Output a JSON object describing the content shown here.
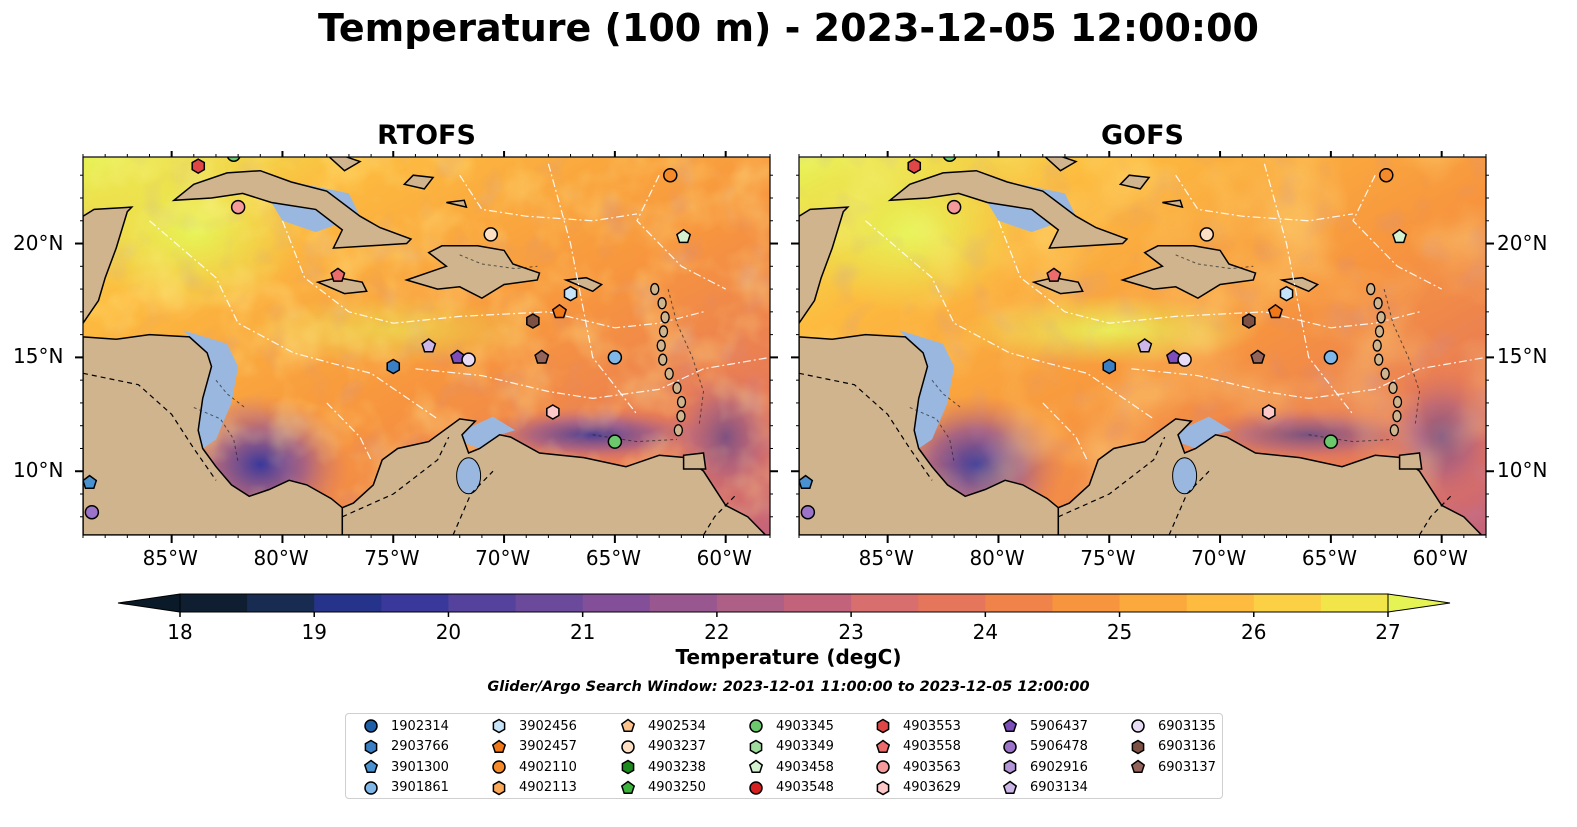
{
  "title": "Temperature (100 m) - 2023-12-05 12:00:00",
  "panels": [
    {
      "title": "RTOFS",
      "warm_level": 0.85
    },
    {
      "title": "GOFS",
      "warm_level": 0.92
    }
  ],
  "axes": {
    "lon_labels": [
      "85°W",
      "80°W",
      "75°W",
      "70°W",
      "65°W",
      "60°W"
    ],
    "lat_labels": [
      "20°N",
      "15°N",
      "10°N"
    ],
    "lon_values": [
      -85,
      -80,
      -75,
      -70,
      -65,
      -60
    ],
    "lat_values": [
      20,
      15,
      10
    ],
    "lon_range": [
      -89,
      -58
    ],
    "lat_range": [
      7.2,
      23.8
    ]
  },
  "colorbar": {
    "label": "Temperature (degC)",
    "ticks": [
      "18",
      "19",
      "20",
      "21",
      "22",
      "23",
      "24",
      "25",
      "26",
      "27"
    ],
    "min": 18,
    "max": 27,
    "colors": [
      "#0f1e30",
      "#172c50",
      "#25348a",
      "#3a389b",
      "#55429c",
      "#6b4a9c",
      "#824f98",
      "#98588f",
      "#ad5f85",
      "#c3637b",
      "#d86e6e",
      "#e5765b",
      "#f0834a",
      "#f7953e",
      "#fba83c",
      "#fdbb3f",
      "#fbd044",
      "#f2e54a"
    ],
    "extend": "both",
    "under_color": "#0b1a28",
    "over_color": "#e6f355"
  },
  "search_window": "Glider/Argo Search Window: 2023-12-01 11:00:00 to 2023-12-05 12:00:00",
  "legend": [
    {
      "id": "1902314",
      "marker": "circle",
      "color": "#1f5fa8"
    },
    {
      "id": "2903766",
      "marker": "hexagon",
      "color": "#3a7ec4"
    },
    {
      "id": "3901300",
      "marker": "pentagon",
      "color": "#4a91d0"
    },
    {
      "id": "3901861",
      "marker": "circle",
      "color": "#7fb8e8"
    },
    {
      "id": "3902456",
      "marker": "hexagon",
      "color": "#c7e3f7"
    },
    {
      "id": "3902457",
      "marker": "pentagon",
      "color": "#f07818"
    },
    {
      "id": "4902110",
      "marker": "circle",
      "color": "#f58a2a"
    },
    {
      "id": "4902113",
      "marker": "hexagon",
      "color": "#fba858"
    },
    {
      "id": "4902534",
      "marker": "pentagon",
      "color": "#fcc48c"
    },
    {
      "id": "4903237",
      "marker": "circle",
      "color": "#fde0c4"
    },
    {
      "id": "4903238",
      "marker": "hexagon",
      "color": "#1d8a1d"
    },
    {
      "id": "4903250",
      "marker": "pentagon",
      "color": "#3cb43c"
    },
    {
      "id": "4903345",
      "marker": "circle",
      "color": "#6cc86c"
    },
    {
      "id": "4903349",
      "marker": "hexagon",
      "color": "#9fdd9f"
    },
    {
      "id": "4903458",
      "marker": "pentagon",
      "color": "#d4f2d0"
    },
    {
      "id": "4903548",
      "marker": "circle",
      "color": "#d62020"
    },
    {
      "id": "4903553",
      "marker": "hexagon",
      "color": "#e04646"
    },
    {
      "id": "4903558",
      "marker": "pentagon",
      "color": "#ec6c6c"
    },
    {
      "id": "4903563",
      "marker": "circle",
      "color": "#f49a9a"
    },
    {
      "id": "4903629",
      "marker": "hexagon",
      "color": "#fcc8c8"
    },
    {
      "id": "5906437",
      "marker": "pentagon",
      "color": "#7c4dbb"
    },
    {
      "id": "5906478",
      "marker": "circle",
      "color": "#9b74c9"
    },
    {
      "id": "6902916",
      "marker": "hexagon",
      "color": "#b496d8"
    },
    {
      "id": "6903134",
      "marker": "pentagon",
      "color": "#cdb6e8"
    },
    {
      "id": "6903135",
      "marker": "circle",
      "color": "#e8dcf5"
    },
    {
      "id": "6903136",
      "marker": "hexagon",
      "color": "#7c5144"
    },
    {
      "id": "6903137",
      "marker": "pentagon",
      "color": "#94645a"
    }
  ],
  "floats": [
    {
      "id": "4903553",
      "lon": -83.8,
      "lat": 23.4
    },
    {
      "id": "4903345",
      "lon": -82.2,
      "lat": 23.9
    },
    {
      "id": "4903563",
      "lon": -82.0,
      "lat": 21.6
    },
    {
      "id": "4903237",
      "lon": -70.6,
      "lat": 20.4
    },
    {
      "id": "4902110",
      "lon": -62.5,
      "lat": 23.0
    },
    {
      "id": "4903458",
      "lon": -61.9,
      "lat": 20.3
    },
    {
      "id": "4903558",
      "lon": -77.5,
      "lat": 18.6
    },
    {
      "id": "3902456",
      "lon": -67.0,
      "lat": 17.8
    },
    {
      "id": "3902457",
      "lon": -67.5,
      "lat": 17.0
    },
    {
      "id": "6903136",
      "lon": -68.7,
      "lat": 16.6
    },
    {
      "id": "6903134",
      "lon": -73.4,
      "lat": 15.5
    },
    {
      "id": "5906437",
      "lon": -72.1,
      "lat": 15.0
    },
    {
      "id": "6903135",
      "lon": -71.6,
      "lat": 14.9
    },
    {
      "id": "2903766",
      "lon": -75.0,
      "lat": 14.6
    },
    {
      "id": "6903137",
      "lon": -68.3,
      "lat": 15.0
    },
    {
      "id": "3901861",
      "lon": -65.0,
      "lat": 15.0
    },
    {
      "id": "4903629",
      "lon": -67.8,
      "lat": 12.6
    },
    {
      "id": "4903345",
      "lon": -65.0,
      "lat": 11.3
    },
    {
      "id": "5906478",
      "lon": -88.6,
      "lat": 8.2
    },
    {
      "id": "3901300",
      "lon": -88.7,
      "lat": 9.5
    }
  ]
}
